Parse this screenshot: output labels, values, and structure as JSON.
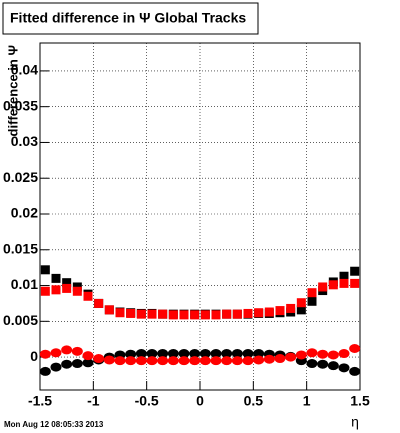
{
  "chart_data": {
    "type": "scatter",
    "title": "Fitted difference in Ψ   Global Tracks",
    "x_label": "η",
    "y_label": "difference in Ψ",
    "timestamp": "Mon Aug 12 08:05:33 2013",
    "xlim": [
      -1.5,
      1.5
    ],
    "xticks": [
      -1.5,
      -1,
      -0.5,
      0,
      0.5,
      1,
      1.5
    ],
    "ylim": [
      -0.0046,
      0.0439
    ],
    "yticks": [
      0,
      0.005,
      0.01,
      0.015,
      0.02,
      0.025,
      0.03,
      0.035,
      0.04
    ],
    "grid": true,
    "x": [
      -1.45,
      -1.35,
      -1.25,
      -1.15,
      -1.05,
      -0.95,
      -0.85,
      -0.75,
      -0.65,
      -0.55,
      -0.45,
      -0.35,
      -0.25,
      -0.15,
      -0.05,
      0.05,
      0.15,
      0.25,
      0.35,
      0.45,
      0.55,
      0.65,
      0.75,
      0.85,
      0.95,
      1.05,
      1.15,
      1.25,
      1.35,
      1.45
    ],
    "series": [
      {
        "color": "#000000",
        "marker": "square",
        "values": [
          0.0122,
          0.011,
          0.0104,
          0.0098,
          0.0088,
          0.0075,
          0.0066,
          0.0063,
          0.0062,
          0.0061,
          0.0061,
          0.006,
          0.006,
          0.006,
          0.006,
          0.006,
          0.006,
          0.006,
          0.006,
          0.006,
          0.0061,
          0.0061,
          0.0062,
          0.0063,
          0.0066,
          0.0078,
          0.0093,
          0.0105,
          0.0113,
          0.012
        ]
      },
      {
        "color": "#ff0000",
        "marker": "square",
        "values": [
          0.0092,
          0.0094,
          0.0096,
          0.0092,
          0.0085,
          0.0075,
          0.0066,
          0.0062,
          0.0061,
          0.006,
          0.006,
          0.006,
          0.0059,
          0.0059,
          0.0059,
          0.0059,
          0.0059,
          0.006,
          0.006,
          0.0061,
          0.0062,
          0.0063,
          0.0065,
          0.0068,
          0.0076,
          0.009,
          0.0098,
          0.0101,
          0.0103,
          0.0103
        ]
      },
      {
        "color": "#000000",
        "marker": "circle",
        "values": [
          -0.002,
          -0.0014,
          -0.001,
          -0.0009,
          -0.0008,
          -0.0004,
          0.0,
          0.0003,
          0.0004,
          0.0005,
          0.0005,
          0.0005,
          0.0005,
          0.0005,
          0.0005,
          0.0005,
          0.0005,
          0.0005,
          0.0005,
          0.0005,
          0.0005,
          0.0004,
          0.0003,
          0.0001,
          -0.0005,
          -0.0009,
          -0.001,
          -0.0012,
          -0.0015,
          -0.002
        ]
      },
      {
        "color": "#ff0000",
        "marker": "circle",
        "values": [
          0.0004,
          0.0006,
          0.001,
          0.0008,
          0.0002,
          -0.0002,
          -0.0004,
          -0.0005,
          -0.0005,
          -0.0005,
          -0.0005,
          -0.0005,
          -0.0005,
          -0.0005,
          -0.0005,
          -0.0005,
          -0.0005,
          -0.0005,
          -0.0005,
          -0.0005,
          -0.0004,
          -0.0003,
          -0.0002,
          0.0,
          0.0003,
          0.0006,
          0.0004,
          0.0003,
          0.0005,
          0.0012
        ]
      }
    ]
  }
}
